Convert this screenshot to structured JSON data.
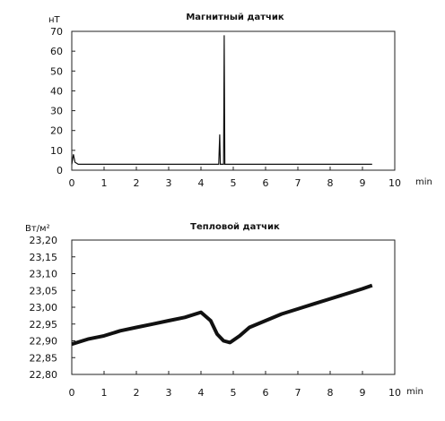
{
  "chart_data": [
    {
      "type": "line",
      "title": "Магнитный датчик",
      "ylabel": "нТ",
      "xunit": "min",
      "xlim": [
        0,
        10
      ],
      "ylim": [
        0,
        70
      ],
      "xticks": [
        "0",
        "1",
        "2",
        "3",
        "4",
        "5",
        "6",
        "7",
        "8",
        "9",
        "10"
      ],
      "yticks": [
        "0",
        "10",
        "20",
        "30",
        "40",
        "50",
        "60",
        "70"
      ],
      "grid": false,
      "series": [
        {
          "x": [
            0.0,
            0.05,
            0.1,
            0.2,
            0.5,
            1.0,
            1.5,
            2.0,
            2.5,
            3.0,
            3.5,
            4.0,
            4.4,
            4.55,
            4.58,
            4.6,
            4.62,
            4.65,
            4.7,
            4.72,
            4.74,
            4.76,
            4.8,
            5.0,
            5.5,
            6.0,
            6.5,
            7.0,
            7.5,
            8.0,
            8.5,
            9.0,
            9.3
          ],
          "y": [
            3,
            8,
            4,
            3,
            3,
            3,
            3,
            3,
            3,
            3,
            3,
            3,
            3,
            3,
            18,
            3,
            3,
            3,
            3,
            68,
            3,
            3,
            3,
            3,
            3,
            3,
            3,
            3,
            3,
            3,
            3,
            3,
            3
          ]
        }
      ]
    },
    {
      "type": "line",
      "title": "Тепловой датчик",
      "ylabel": "Вт/м²",
      "xunit": "min",
      "xlim": [
        0,
        10
      ],
      "ylim": [
        22.8,
        23.2
      ],
      "xticks": [
        "0",
        "1",
        "2",
        "3",
        "4",
        "5",
        "6",
        "7",
        "8",
        "9",
        "10"
      ],
      "yticks": [
        "22,80",
        "22,85",
        "22,90",
        "22,95",
        "23,00",
        "23,05",
        "23,10",
        "23,15",
        "23,20"
      ],
      "grid": false,
      "series": [
        {
          "x": [
            0.0,
            0.5,
            1.0,
            1.5,
            2.0,
            2.5,
            3.0,
            3.5,
            4.0,
            4.3,
            4.5,
            4.7,
            4.9,
            5.2,
            5.5,
            6.0,
            6.5,
            7.0,
            7.5,
            8.0,
            8.5,
            9.0,
            9.3
          ],
          "y": [
            22.89,
            22.905,
            22.915,
            22.93,
            22.94,
            22.95,
            22.96,
            22.97,
            22.985,
            22.96,
            22.92,
            22.9,
            22.895,
            22.915,
            22.94,
            22.96,
            22.98,
            22.995,
            23.01,
            23.025,
            23.04,
            23.055,
            23.065
          ]
        }
      ]
    }
  ]
}
